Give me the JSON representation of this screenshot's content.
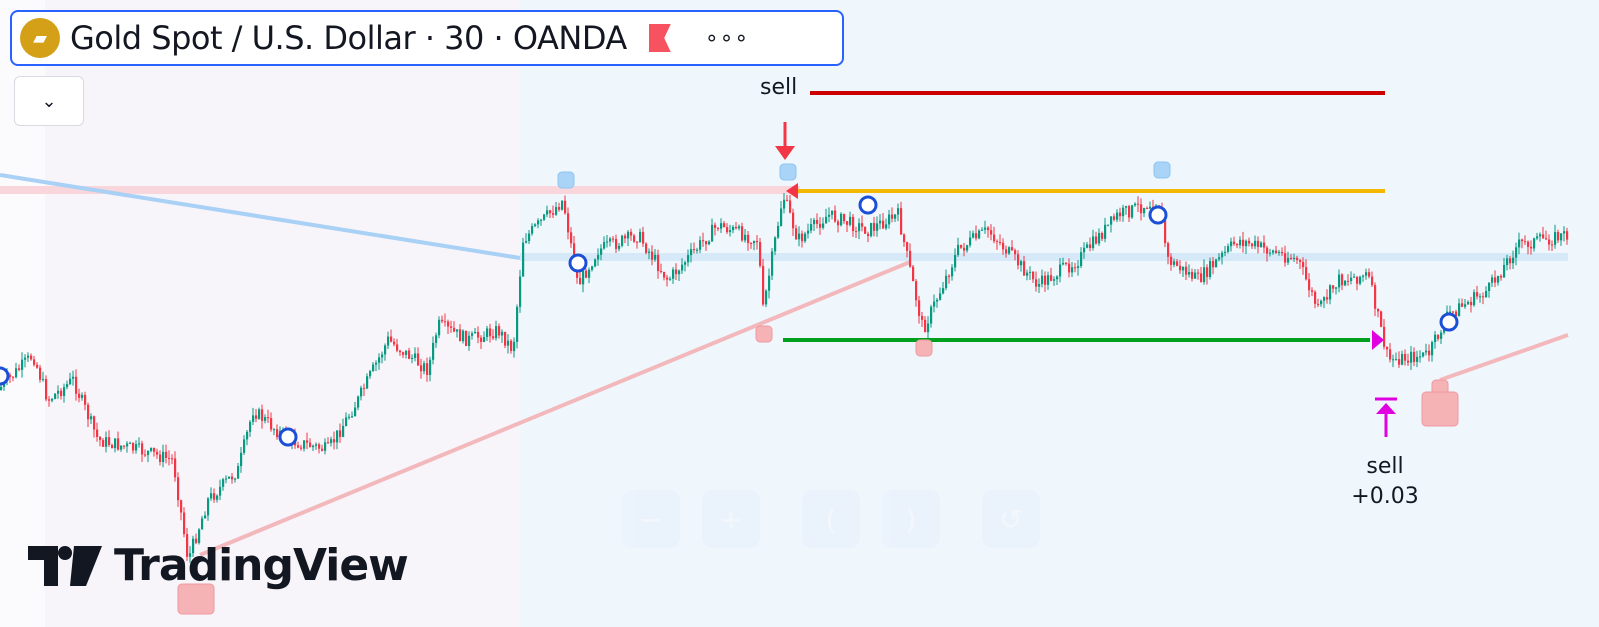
{
  "header": {
    "symbol_title": "Gold Spot / U.S. Dollar · 30 · OANDA",
    "more_icon": "ellipsis-icon",
    "flag_icon": "flag-icon",
    "collapse_icon": "chevron-down-icon"
  },
  "annotations": {
    "sell_top": "sell",
    "sell_bottom": "sell",
    "sell_bottom_value": "+0.03"
  },
  "branding": {
    "logo_text": "TradingView"
  },
  "nav_buttons": [
    "zoom-out",
    "zoom-in",
    "scroll-left",
    "scroll-right",
    "reset-chart"
  ],
  "colors": {
    "up": "#089981",
    "down": "#f23645",
    "stop_line": "#cc0000",
    "entry_line": "#f5b800",
    "target_line": "#00a01e",
    "accent": "#2962ff",
    "marker_magenta": "#e000e0"
  }
}
